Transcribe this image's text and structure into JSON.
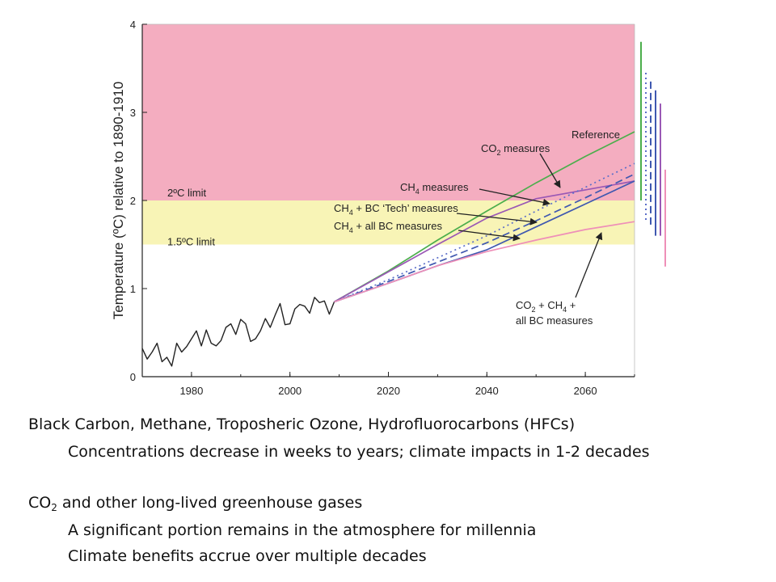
{
  "chart_data": {
    "type": "line",
    "ylabel": "Temperature (ºC) relative to 1890-1910",
    "xlim": [
      1970,
      2070
    ],
    "ylim": [
      0,
      4
    ],
    "x_ticks": [
      "1980",
      "2000",
      "2020",
      "2040",
      "2060"
    ],
    "y_ticks": [
      "0",
      "1",
      "2",
      "3",
      "4"
    ],
    "bands": [
      {
        "from": 2.0,
        "to": 4.0,
        "color": "#f4adc0"
      },
      {
        "from": 1.5,
        "to": 2.0,
        "color": "#f8f4b6"
      }
    ],
    "limit_labels": [
      {
        "text": "2ºC limit",
        "y": 2.0
      },
      {
        "text": "1.5ºC limit",
        "y": 1.5
      }
    ],
    "historical": {
      "color": "#222222",
      "x": [
        1970,
        1971,
        1972,
        1973,
        1974,
        1975,
        1976,
        1977,
        1978,
        1979,
        1980,
        1981,
        1982,
        1983,
        1984,
        1985,
        1986,
        1987,
        1988,
        1989,
        1990,
        1991,
        1992,
        1993,
        1994,
        1995,
        1996,
        1997,
        1998,
        1999,
        2000,
        2001,
        2002,
        2003,
        2004,
        2005,
        2006,
        2007,
        2008,
        2009
      ],
      "y": [
        0.32,
        0.2,
        0.28,
        0.38,
        0.17,
        0.22,
        0.12,
        0.38,
        0.28,
        0.34,
        0.43,
        0.52,
        0.35,
        0.53,
        0.38,
        0.35,
        0.41,
        0.56,
        0.6,
        0.48,
        0.65,
        0.6,
        0.4,
        0.43,
        0.52,
        0.66,
        0.56,
        0.7,
        0.83,
        0.59,
        0.6,
        0.77,
        0.82,
        0.8,
        0.72,
        0.9,
        0.84,
        0.86,
        0.71,
        0.85
      ]
    },
    "series": [
      {
        "color": "#4cae4c",
        "dash": "solid",
        "x": [
          2009,
          2020,
          2030,
          2040,
          2050,
          2060,
          2070
        ],
        "y": [
          0.85,
          1.2,
          1.55,
          1.88,
          2.2,
          2.5,
          2.78
        ]
      },
      {
        "color": "#9a58b5",
        "dash": "solid",
        "x": [
          2009,
          2020,
          2030,
          2040,
          2050,
          2060,
          2070
        ],
        "y": [
          0.85,
          1.19,
          1.5,
          1.8,
          2.02,
          2.12,
          2.22
        ]
      },
      {
        "color": "#5b6ec9",
        "dash": "dotted",
        "x": [
          2009,
          2020,
          2030,
          2040,
          2050,
          2060,
          2070
        ],
        "y": [
          0.85,
          1.1,
          1.35,
          1.6,
          1.88,
          2.15,
          2.42
        ]
      },
      {
        "color": "#3f58b0",
        "dash": "dashed",
        "x": [
          2009,
          2020,
          2030,
          2040,
          2050,
          2060,
          2070
        ],
        "y": [
          0.85,
          1.08,
          1.3,
          1.52,
          1.77,
          2.03,
          2.3
        ]
      },
      {
        "color": "#3f58b0",
        "dash": "solid",
        "x": [
          2009,
          2020,
          2030,
          2040,
          2050,
          2060,
          2070
        ],
        "y": [
          0.85,
          1.06,
          1.26,
          1.44,
          1.7,
          1.96,
          2.22
        ]
      },
      {
        "color": "#ee8fb8",
        "dash": "solid",
        "x": [
          2009,
          2020,
          2030,
          2040,
          2050,
          2060,
          2070
        ],
        "y": [
          0.85,
          1.06,
          1.26,
          1.42,
          1.55,
          1.67,
          1.76
        ]
      }
    ],
    "range_bars": [
      {
        "color": "#4cae4c",
        "dash": "solid",
        "low": 2.0,
        "high": 3.8
      },
      {
        "color": "#5b6ec9",
        "dash": "dotted",
        "low": 1.75,
        "high": 3.45
      },
      {
        "color": "#3f58b0",
        "dash": "dashed",
        "low": 1.7,
        "high": 3.35
      },
      {
        "color": "#3f58b0",
        "dash": "solid",
        "low": 1.6,
        "high": 3.25
      },
      {
        "color": "#9a58b5",
        "dash": "solid",
        "low": 1.6,
        "high": 3.1
      },
      {
        "color": "#ee8fb8",
        "dash": "solid",
        "low": 1.25,
        "high": 2.35
      }
    ],
    "annotations": {
      "reference": "Reference",
      "co2_measures": "CO<sub>2</sub> measures",
      "ch4_measures": "CH<sub>4</sub> measures",
      "ch4_bc_tech": "CH<sub>4</sub> + BC ‘Tech’ measures",
      "ch4_all_bc": "CH<sub>4</sub> + all BC measures",
      "all_measures_line1": "CO<sub>2</sub> + CH<sub>4</sub> +",
      "all_measures_line2": "all BC measures"
    }
  },
  "caption": {
    "line1": "Black Carbon, Methane, Troposheric Ozone, Hydrofluorocarbons (HFCs)",
    "line2": "Concentrations decrease in weeks to years; climate impacts in 1-2 decades",
    "line3_co": "CO",
    "line3_sub": "2",
    "line3_rest": " and other long-lived greenhouse gases",
    "line4": "A significant portion remains in the atmosphere for millennia",
    "line5": "Climate benefits accrue over multiple decades"
  }
}
